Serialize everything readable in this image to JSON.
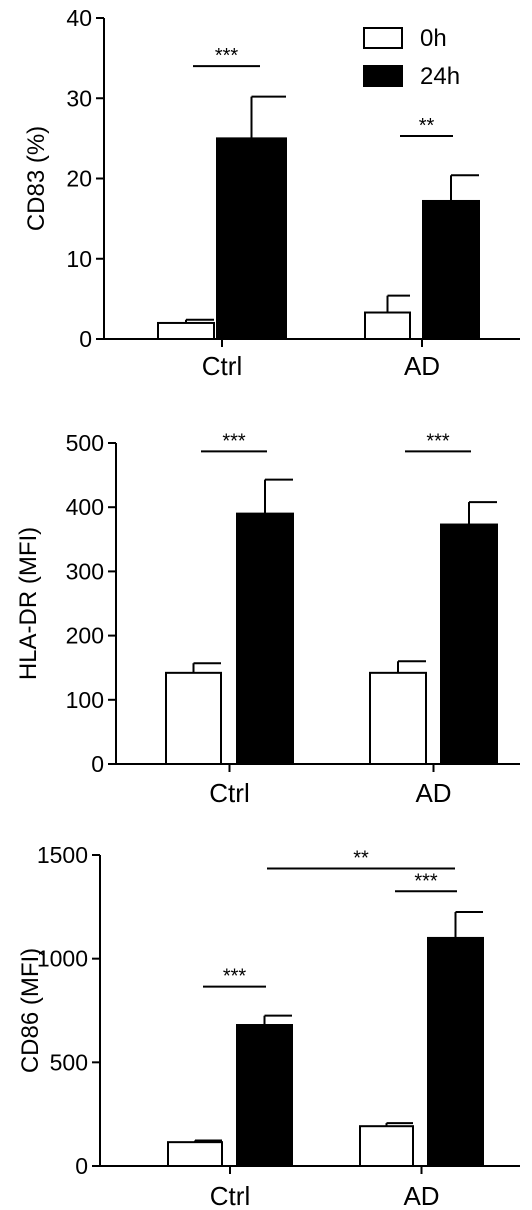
{
  "chart_data": [
    {
      "type": "bar",
      "categories": [
        "Ctrl",
        "AD"
      ],
      "ylabel": "CD83 (%)",
      "ylim": [
        0,
        40
      ],
      "yticks": [
        0,
        10,
        20,
        30,
        40
      ],
      "legend": {
        "placement": "top-right",
        "entries": [
          "0h",
          "24h"
        ]
      },
      "series": [
        {
          "name": "0h",
          "fill": "#ffffff",
          "values": [
            2.0,
            3.3
          ],
          "errors": [
            0.4,
            2.1
          ]
        },
        {
          "name": "24h",
          "fill": "#000000",
          "values": [
            25.0,
            17.2
          ],
          "errors": [
            5.2,
            3.2
          ]
        }
      ],
      "annotations": [
        {
          "label": "***",
          "category": "Ctrl",
          "y": 34.0
        },
        {
          "label": "**",
          "category": "AD",
          "y": 25.3
        }
      ]
    },
    {
      "type": "bar",
      "categories": [
        "Ctrl",
        "AD"
      ],
      "ylabel": "HLA-DR (MFI)",
      "ylim": [
        0,
        500
      ],
      "yticks": [
        0,
        100,
        200,
        300,
        400,
        500
      ],
      "series": [
        {
          "name": "0h",
          "fill": "#ffffff",
          "values": [
            142,
            142
          ],
          "errors": [
            15,
            18
          ]
        },
        {
          "name": "24h",
          "fill": "#000000",
          "values": [
            390,
            373
          ],
          "errors": [
            53,
            35
          ]
        }
      ],
      "annotations": [
        {
          "label": "***",
          "category": "Ctrl",
          "y": 487
        },
        {
          "label": "***",
          "category": "AD",
          "y": 487
        }
      ]
    },
    {
      "type": "bar",
      "categories": [
        "Ctrl",
        "AD"
      ],
      "ylabel": "CD86 (MFI)",
      "ylim": [
        0,
        1500
      ],
      "yticks": [
        0,
        500,
        1000,
        1500
      ],
      "series": [
        {
          "name": "0h",
          "fill": "#ffffff",
          "values": [
            115,
            192
          ],
          "errors": [
            8,
            15
          ]
        },
        {
          "name": "24h",
          "fill": "#000000",
          "values": [
            680,
            1100
          ],
          "errors": [
            45,
            125
          ]
        }
      ],
      "annotations": [
        {
          "label": "***",
          "category": "Ctrl",
          "y": 865
        },
        {
          "label": "***",
          "category": "AD",
          "y": 1325
        },
        {
          "label": "**",
          "span": "Ctrl-24h to AD-24h",
          "y": 1435
        }
      ]
    }
  ]
}
